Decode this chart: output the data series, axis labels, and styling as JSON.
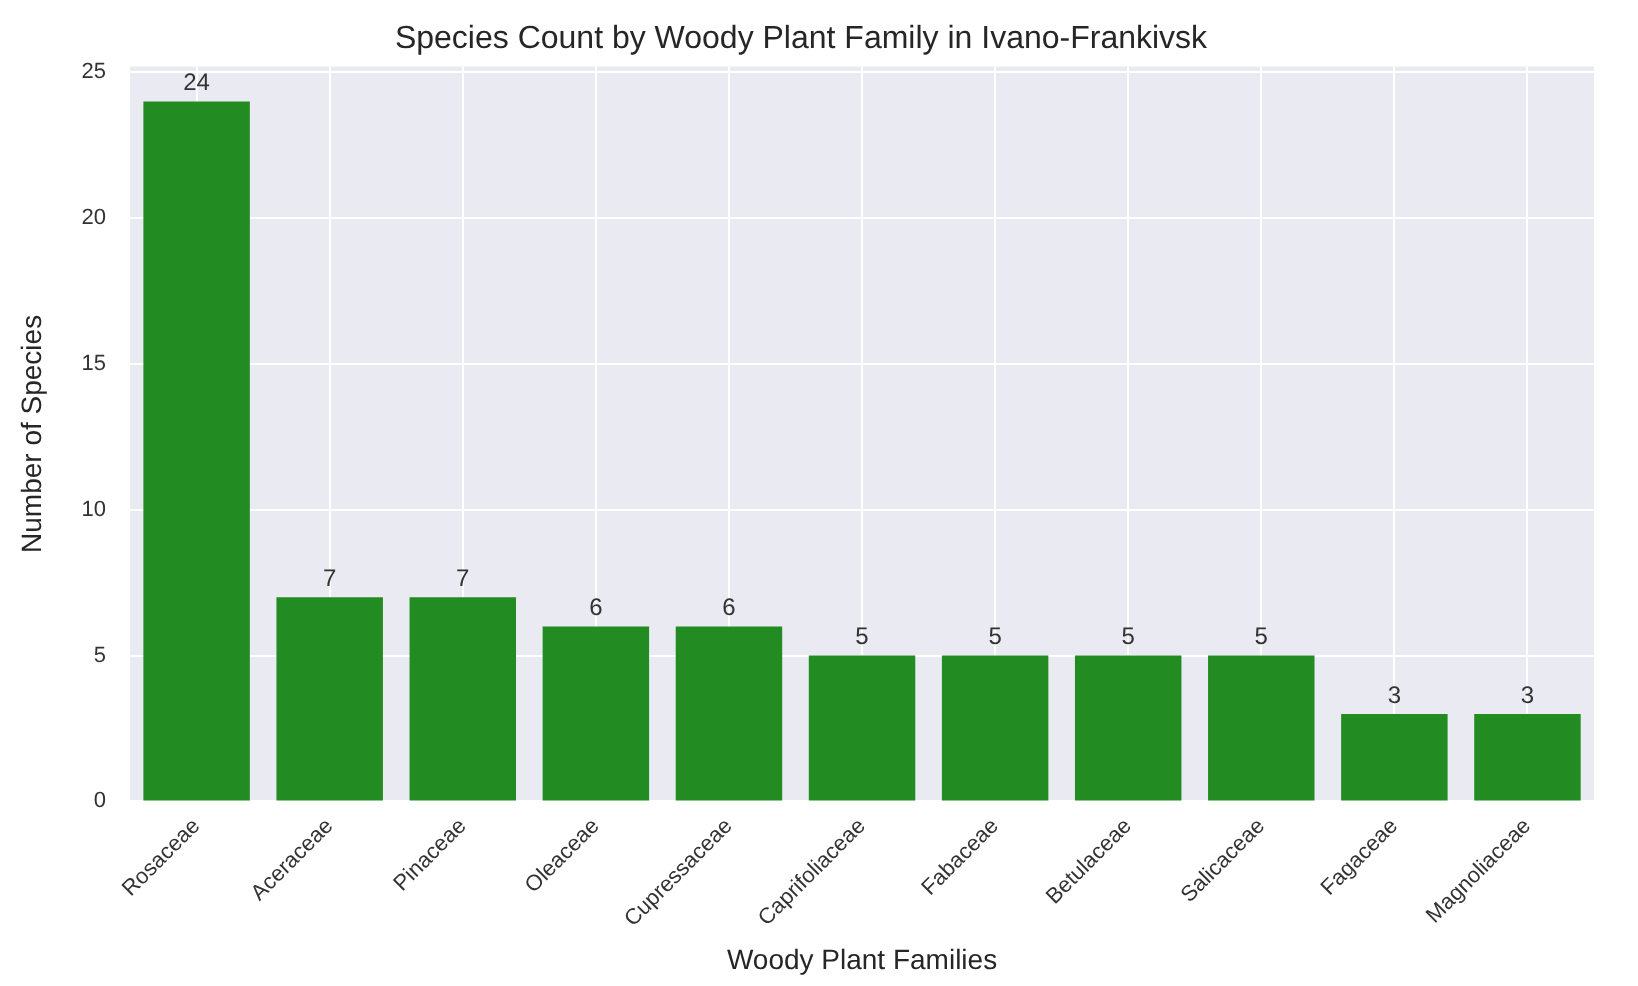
{
  "chart_data": {
    "type": "bar",
    "title": "Species Count by Woody Plant Family in Ivano-Frankivsk",
    "xlabel": "Woody Plant Families",
    "ylabel": "Number of Species",
    "categories": [
      "Rosaceae",
      "Aceraceae",
      "Pinaceae",
      "Oleaceae",
      "Cupressaceae",
      "Caprifoliaceae",
      "Fabaceae",
      "Betulaceae",
      "Salicaceae",
      "Fagaceae",
      "Magnoliaceae"
    ],
    "values": [
      24,
      7,
      7,
      6,
      6,
      5,
      5,
      5,
      5,
      3,
      3
    ],
    "color": "#228b22",
    "ylim": [
      0,
      25.2
    ],
    "yticks": [
      0,
      5,
      10,
      15,
      20,
      25
    ],
    "grid": true,
    "data_labels": true
  }
}
